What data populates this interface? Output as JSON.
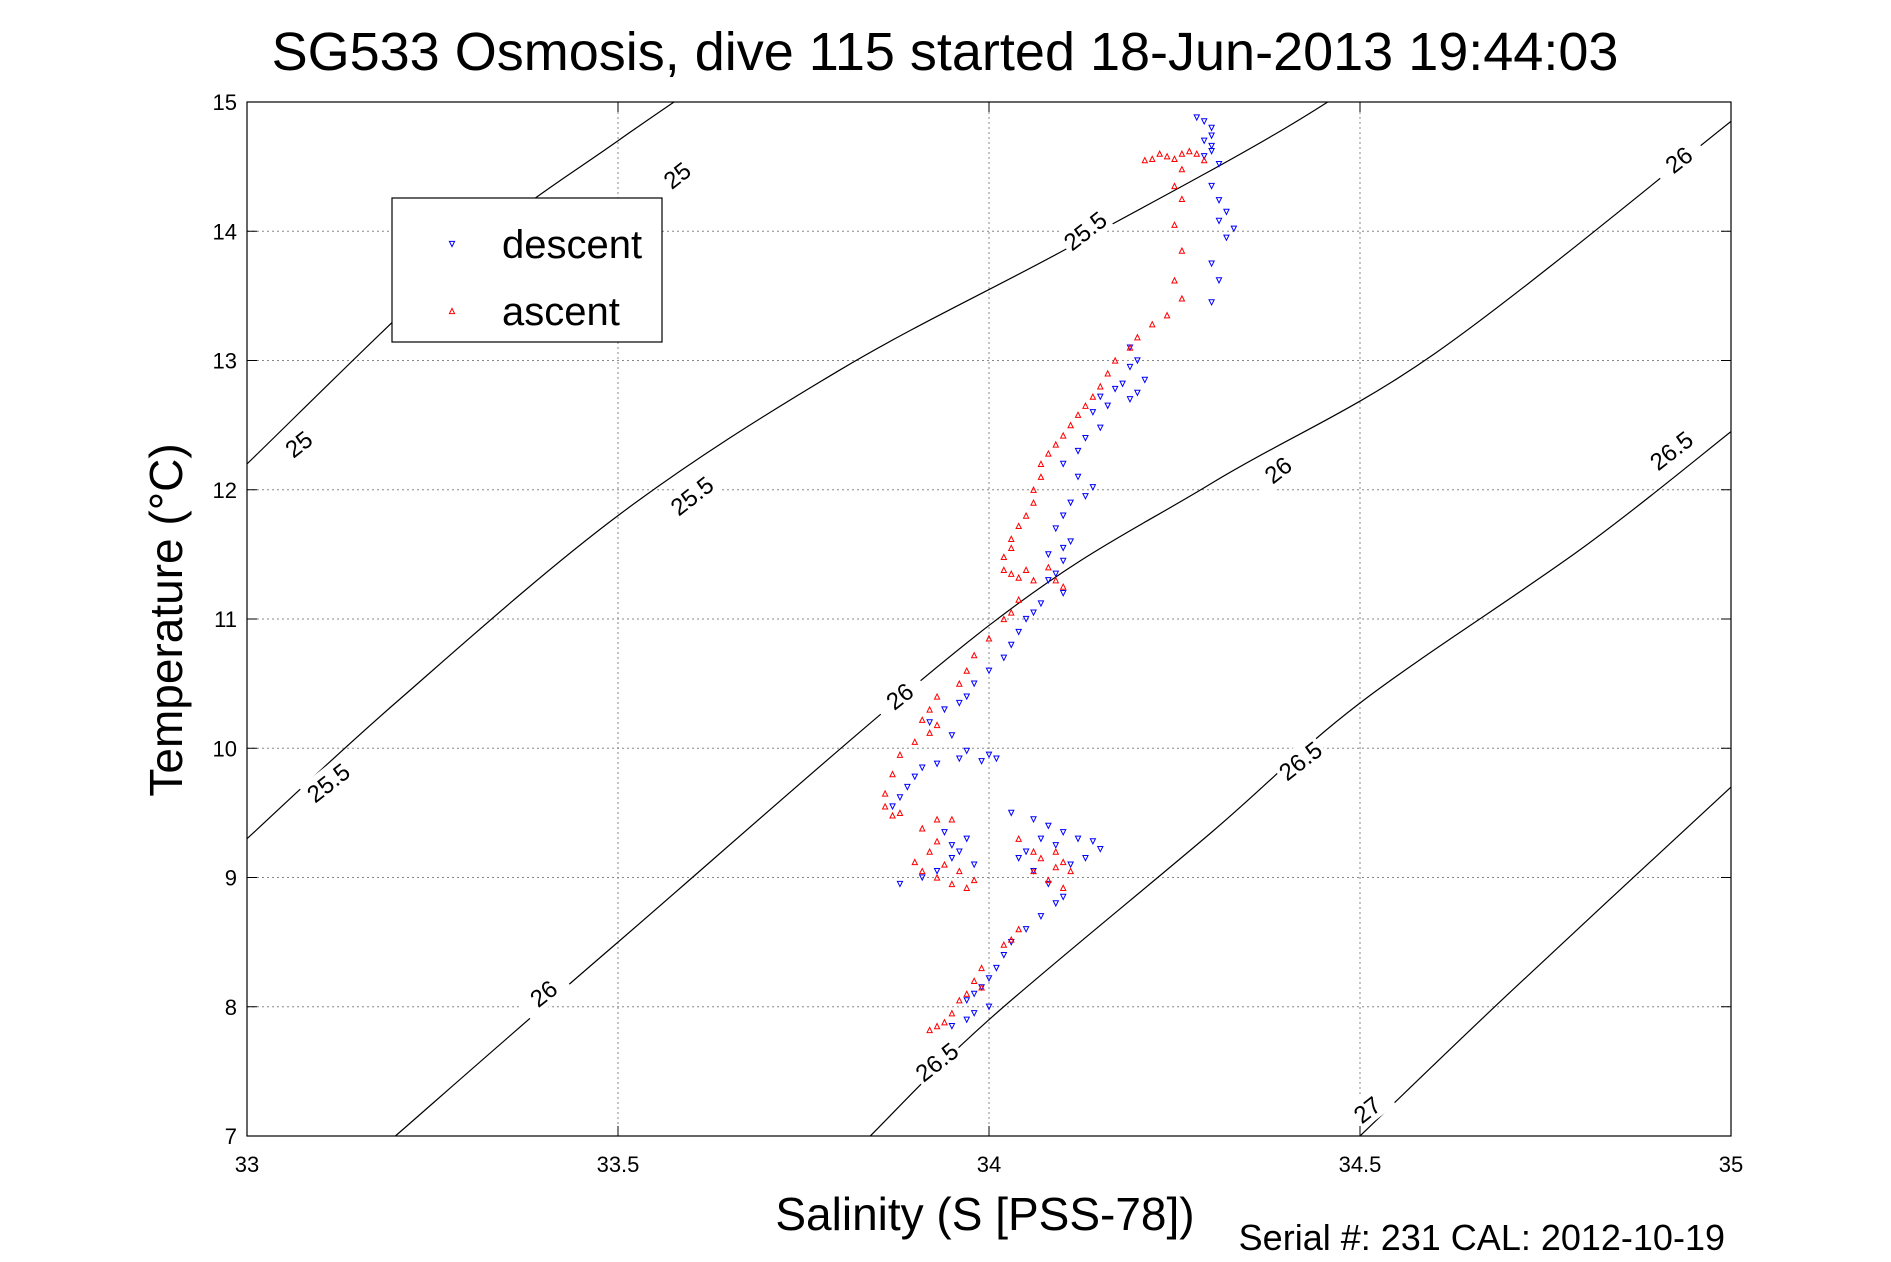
{
  "chart_data": {
    "type": "scatter",
    "title": "SG533 Osmosis, dive 115 started 18-Jun-2013 19:44:03",
    "xlabel": "Salinity (S [PSS-78])",
    "ylabel": "Temperature (°C)",
    "xlim": [
      33,
      35
    ],
    "ylim": [
      7,
      15
    ],
    "xticks": [
      33,
      33.5,
      34,
      34.5,
      35
    ],
    "xtick_labels": [
      "33",
      "33.5",
      "34",
      "34.5",
      "35"
    ],
    "yticks": [
      7,
      8,
      9,
      10,
      11,
      12,
      13,
      14,
      15
    ],
    "ytick_labels": [
      "7",
      "8",
      "9",
      "10",
      "11",
      "12",
      "13",
      "14",
      "15"
    ],
    "grid": true,
    "legend_position": "top-left",
    "footer": "Serial #: 231  CAL: 2012-10-19",
    "contours": [
      {
        "level": "25",
        "points": [
          [
            33,
            12.2
          ],
          [
            33.3,
            13.85
          ],
          [
            33.5,
            14.7
          ],
          [
            33.73,
            15.6
          ]
        ]
      },
      {
        "level": "25.5",
        "points": [
          [
            33,
            9.3
          ],
          [
            33.2,
            10.35
          ],
          [
            33.5,
            11.8
          ],
          [
            33.8,
            12.93
          ],
          [
            34.1,
            13.85
          ],
          [
            34.4,
            14.8
          ],
          [
            34.6,
            15.55
          ]
        ]
      },
      {
        "level": "26",
        "points": [
          [
            33.2,
            7.0
          ],
          [
            33.5,
            8.5
          ],
          [
            34.0,
            10.95
          ],
          [
            34.3,
            12.05
          ],
          [
            34.6,
            13.05
          ],
          [
            35.0,
            14.85
          ]
        ]
      },
      {
        "level": "26.5",
        "points": [
          [
            33.84,
            7.0
          ],
          [
            34.0,
            7.9
          ],
          [
            34.3,
            9.35
          ],
          [
            34.5,
            10.35
          ],
          [
            34.8,
            11.55
          ],
          [
            35.0,
            12.45
          ]
        ]
      },
      {
        "level": "27",
        "points": [
          [
            34.5,
            7.0
          ],
          [
            34.7,
            8.1
          ],
          [
            35.0,
            9.7
          ]
        ]
      }
    ],
    "contour_labels": [
      {
        "text": "25",
        "x": 33.58,
        "y": 14.43
      },
      {
        "text": "25.5",
        "x": 34.13,
        "y": 14.0
      },
      {
        "text": "26",
        "x": 34.93,
        "y": 14.55
      },
      {
        "text": "25",
        "x": 33.07,
        "y": 12.35
      },
      {
        "text": "25.5",
        "x": 33.6,
        "y": 11.95
      },
      {
        "text": "26",
        "x": 34.39,
        "y": 12.15
      },
      {
        "text": "26.5",
        "x": 34.92,
        "y": 12.3
      },
      {
        "text": "26",
        "x": 33.88,
        "y": 10.4
      },
      {
        "text": "25.5",
        "x": 33.11,
        "y": 9.73
      },
      {
        "text": "26.5",
        "x": 34.42,
        "y": 9.9
      },
      {
        "text": "26",
        "x": 33.4,
        "y": 8.1
      },
      {
        "text": "26.5",
        "x": 33.93,
        "y": 7.57
      },
      {
        "text": "27",
        "x": 34.51,
        "y": 7.2
      }
    ],
    "series": [
      {
        "name": "descent",
        "color": "#0000ff",
        "marker": "triangle-down",
        "points": [
          [
            34.28,
            14.88
          ],
          [
            34.29,
            14.85
          ],
          [
            34.3,
            14.8
          ],
          [
            34.3,
            14.74
          ],
          [
            34.29,
            14.7
          ],
          [
            34.3,
            14.66
          ],
          [
            34.3,
            14.62
          ],
          [
            34.29,
            14.58
          ],
          [
            34.31,
            14.52
          ],
          [
            34.3,
            14.35
          ],
          [
            34.31,
            14.24
          ],
          [
            34.32,
            14.15
          ],
          [
            34.31,
            14.08
          ],
          [
            34.33,
            14.02
          ],
          [
            34.32,
            13.95
          ],
          [
            34.3,
            13.75
          ],
          [
            34.31,
            13.62
          ],
          [
            34.3,
            13.45
          ],
          [
            34.19,
            13.1
          ],
          [
            34.2,
            13.0
          ],
          [
            34.19,
            12.95
          ],
          [
            34.21,
            12.85
          ],
          [
            34.2,
            12.75
          ],
          [
            34.18,
            12.82
          ],
          [
            34.19,
            12.7
          ],
          [
            34.17,
            12.78
          ],
          [
            34.16,
            12.65
          ],
          [
            34.15,
            12.72
          ],
          [
            34.14,
            12.6
          ],
          [
            34.15,
            12.48
          ],
          [
            34.13,
            12.4
          ],
          [
            34.12,
            12.3
          ],
          [
            34.1,
            12.2
          ],
          [
            34.12,
            12.1
          ],
          [
            34.14,
            12.02
          ],
          [
            34.13,
            11.95
          ],
          [
            34.11,
            11.9
          ],
          [
            34.1,
            11.8
          ],
          [
            34.09,
            11.7
          ],
          [
            34.11,
            11.6
          ],
          [
            34.1,
            11.55
          ],
          [
            34.08,
            11.5
          ],
          [
            34.1,
            11.45
          ],
          [
            34.09,
            11.35
          ],
          [
            34.08,
            11.3
          ],
          [
            34.1,
            11.2
          ],
          [
            34.07,
            11.12
          ],
          [
            34.06,
            11.05
          ],
          [
            34.05,
            11.0
          ],
          [
            34.04,
            10.9
          ],
          [
            34.03,
            10.8
          ],
          [
            34.02,
            10.7
          ],
          [
            34.0,
            10.6
          ],
          [
            33.98,
            10.5
          ],
          [
            33.97,
            10.4
          ],
          [
            33.96,
            10.35
          ],
          [
            33.94,
            10.3
          ],
          [
            33.92,
            10.2
          ],
          [
            33.95,
            10.1
          ],
          [
            33.97,
            9.98
          ],
          [
            34.0,
            9.95
          ],
          [
            34.01,
            9.92
          ],
          [
            33.99,
            9.9
          ],
          [
            33.96,
            9.92
          ],
          [
            33.93,
            9.88
          ],
          [
            33.91,
            9.85
          ],
          [
            33.9,
            9.78
          ],
          [
            33.89,
            9.7
          ],
          [
            33.88,
            9.62
          ],
          [
            33.87,
            9.55
          ],
          [
            33.94,
            9.35
          ],
          [
            33.95,
            9.25
          ],
          [
            33.97,
            9.3
          ],
          [
            33.95,
            9.15
          ],
          [
            33.93,
            9.05
          ],
          [
            33.91,
            9.0
          ],
          [
            33.88,
            8.95
          ],
          [
            33.96,
            9.2
          ],
          [
            33.98,
            9.1
          ],
          [
            34.03,
            9.5
          ],
          [
            34.06,
            9.45
          ],
          [
            34.08,
            9.4
          ],
          [
            34.1,
            9.35
          ],
          [
            34.12,
            9.3
          ],
          [
            34.14,
            9.28
          ],
          [
            34.15,
            9.22
          ],
          [
            34.13,
            9.15
          ],
          [
            34.11,
            9.1
          ],
          [
            34.09,
            9.25
          ],
          [
            34.07,
            9.3
          ],
          [
            34.05,
            9.2
          ],
          [
            34.04,
            9.15
          ],
          [
            34.06,
            9.05
          ],
          [
            34.08,
            8.95
          ],
          [
            34.1,
            8.85
          ],
          [
            34.09,
            8.8
          ],
          [
            34.07,
            8.7
          ],
          [
            34.05,
            8.6
          ],
          [
            34.03,
            8.5
          ],
          [
            34.02,
            8.4
          ],
          [
            34.01,
            8.3
          ],
          [
            34.0,
            8.22
          ],
          [
            33.99,
            8.15
          ],
          [
            33.98,
            8.1
          ],
          [
            33.97,
            8.05
          ],
          [
            34.0,
            8.0
          ],
          [
            33.98,
            7.95
          ],
          [
            33.97,
            7.9
          ],
          [
            33.95,
            7.85
          ]
        ]
      },
      {
        "name": "ascent",
        "color": "#ff0000",
        "marker": "triangle-up",
        "points": [
          [
            34.22,
            14.56
          ],
          [
            34.24,
            14.58
          ],
          [
            34.26,
            14.6
          ],
          [
            34.27,
            14.62
          ],
          [
            34.28,
            14.6
          ],
          [
            34.29,
            14.55
          ],
          [
            34.25,
            14.56
          ],
          [
            34.21,
            14.55
          ],
          [
            34.23,
            14.6
          ],
          [
            34.26,
            14.48
          ],
          [
            34.25,
            14.35
          ],
          [
            34.26,
            14.25
          ],
          [
            34.25,
            14.05
          ],
          [
            34.26,
            13.85
          ],
          [
            34.25,
            13.62
          ],
          [
            34.26,
            13.48
          ],
          [
            34.24,
            13.35
          ],
          [
            34.22,
            13.28
          ],
          [
            34.2,
            13.18
          ],
          [
            34.19,
            13.1
          ],
          [
            34.17,
            13.0
          ],
          [
            34.16,
            12.9
          ],
          [
            34.15,
            12.8
          ],
          [
            34.14,
            12.72
          ],
          [
            34.13,
            12.65
          ],
          [
            34.12,
            12.58
          ],
          [
            34.11,
            12.5
          ],
          [
            34.1,
            12.42
          ],
          [
            34.09,
            12.35
          ],
          [
            34.08,
            12.28
          ],
          [
            34.07,
            12.2
          ],
          [
            34.07,
            12.1
          ],
          [
            34.06,
            12.0
          ],
          [
            34.06,
            11.9
          ],
          [
            34.05,
            11.8
          ],
          [
            34.04,
            11.72
          ],
          [
            34.03,
            11.62
          ],
          [
            34.03,
            11.55
          ],
          [
            34.02,
            11.48
          ],
          [
            34.02,
            11.38
          ],
          [
            34.03,
            11.35
          ],
          [
            34.05,
            11.38
          ],
          [
            34.04,
            11.32
          ],
          [
            34.06,
            11.3
          ],
          [
            34.08,
            11.4
          ],
          [
            34.09,
            11.3
          ],
          [
            34.1,
            11.25
          ],
          [
            34.04,
            11.15
          ],
          [
            34.03,
            11.05
          ],
          [
            34.02,
            11.0
          ],
          [
            34.0,
            10.85
          ],
          [
            33.98,
            10.72
          ],
          [
            33.97,
            10.6
          ],
          [
            33.96,
            10.5
          ],
          [
            33.93,
            10.4
          ],
          [
            33.92,
            10.3
          ],
          [
            33.91,
            10.22
          ],
          [
            33.93,
            10.18
          ],
          [
            33.92,
            10.12
          ],
          [
            33.9,
            10.05
          ],
          [
            33.88,
            9.95
          ],
          [
            33.87,
            9.8
          ],
          [
            33.86,
            9.65
          ],
          [
            33.86,
            9.55
          ],
          [
            33.87,
            9.48
          ],
          [
            33.88,
            9.5
          ],
          [
            33.91,
            9.38
          ],
          [
            33.93,
            9.45
          ],
          [
            33.95,
            9.45
          ],
          [
            33.93,
            9.28
          ],
          [
            33.92,
            9.2
          ],
          [
            33.94,
            9.1
          ],
          [
            33.96,
            9.05
          ],
          [
            33.98,
            8.98
          ],
          [
            33.97,
            8.92
          ],
          [
            33.95,
            8.95
          ],
          [
            33.93,
            9.0
          ],
          [
            33.91,
            9.05
          ],
          [
            33.9,
            9.12
          ],
          [
            34.04,
            9.3
          ],
          [
            34.06,
            9.2
          ],
          [
            34.07,
            9.15
          ],
          [
            34.09,
            9.08
          ],
          [
            34.11,
            9.05
          ],
          [
            34.1,
            9.12
          ],
          [
            34.09,
            9.2
          ],
          [
            34.06,
            9.05
          ],
          [
            34.08,
            8.98
          ],
          [
            34.1,
            8.92
          ],
          [
            34.04,
            8.6
          ],
          [
            34.03,
            8.52
          ],
          [
            34.02,
            8.48
          ],
          [
            33.99,
            8.3
          ],
          [
            33.98,
            8.2
          ],
          [
            33.99,
            8.15
          ],
          [
            33.97,
            8.1
          ],
          [
            33.96,
            8.05
          ],
          [
            33.95,
            7.95
          ],
          [
            33.94,
            7.88
          ],
          [
            33.93,
            7.85
          ],
          [
            33.92,
            7.82
          ]
        ]
      }
    ]
  }
}
